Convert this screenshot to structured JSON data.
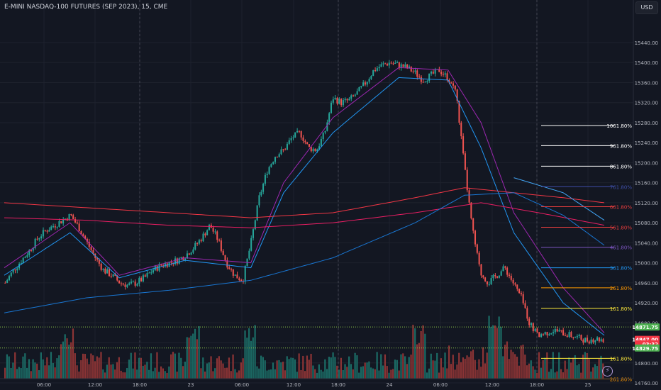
{
  "header": {
    "title": "E-MINI NASDAQ-100 FUTURES (SEP 2023), 15, CME",
    "currency_button": "USD"
  },
  "colors": {
    "background": "#131722",
    "grid": "#1e222d",
    "text": "#b2b5be",
    "up_candle": "#26a69a",
    "down_candle": "#ef5350",
    "volume_up": "#1b6b65",
    "volume_down": "#8c3435"
  },
  "icons": [
    "lightning-icon"
  ],
  "chart_data": {
    "type": "candlestick",
    "symbol": "E-MINI NASDAQ-100 FUTURES (SEP 2023)",
    "interval": "15",
    "exchange": "CME",
    "currency": "USD",
    "ylim": [
      14745,
      15462
    ],
    "y_ticks": [
      {
        "v": 14760,
        "label": "14760.00"
      },
      {
        "v": 14800,
        "label": "14800.00"
      },
      {
        "v": 14840,
        "label": "14840.00"
      },
      {
        "v": 14880,
        "label": "14880.00"
      },
      {
        "v": 14920,
        "label": "14920.00"
      },
      {
        "v": 14960,
        "label": "14960.00"
      },
      {
        "v": 15000,
        "label": "15000.00"
      },
      {
        "v": 15040,
        "label": "15040.00"
      },
      {
        "v": 15080,
        "label": "15080.00"
      },
      {
        "v": 15120,
        "label": "15120.00"
      },
      {
        "v": 15160,
        "label": "15160.00"
      },
      {
        "v": 15200,
        "label": "15200.00"
      },
      {
        "v": 15240,
        "label": "15240.00"
      },
      {
        "v": 15280,
        "label": "15280.00"
      },
      {
        "v": 15320,
        "label": "15320.00"
      },
      {
        "v": 15360,
        "label": "15360.00"
      },
      {
        "v": 15400,
        "label": "15400.00"
      },
      {
        "v": 15440,
        "label": "15440.00"
      }
    ],
    "x_ticks": [
      "06:00",
      "12:00",
      "18:00",
      "23",
      "06:00",
      "12:00",
      "18:00",
      "24",
      "06:00",
      "12:00",
      "18:00",
      "25"
    ],
    "session_separators": [
      3,
      7,
      11
    ],
    "price_anchors": [
      14960,
      14985,
      15005,
      15025,
      15050,
      15065,
      15075,
      15085,
      15095,
      15070,
      15040,
      15010,
      14985,
      14975,
      14960,
      14955,
      14960,
      14970,
      14985,
      14995,
      15000,
      15005,
      15015,
      15030,
      15050,
      15075,
      15045,
      15000,
      14975,
      14965,
      15040,
      15130,
      15185,
      15215,
      15225,
      15250,
      15260,
      15230,
      15225,
      15260,
      15330,
      15320,
      15325,
      15340,
      15360,
      15385,
      15395,
      15400,
      15395,
      15390,
      15380,
      15365,
      15375,
      15385,
      15370,
      15345,
      15200,
      15070,
      14980,
      14960,
      14975,
      14990,
      14960,
      14930,
      14880,
      14855,
      14860,
      14865,
      14860,
      14855,
      14850,
      14845,
      14848,
      14847
    ],
    "moving_averages": [
      {
        "color": "#9c27b0",
        "points": [
          [
            0,
            14990
          ],
          [
            8,
            15080
          ],
          [
            14,
            14975
          ],
          [
            22,
            15010
          ],
          [
            30,
            15000
          ],
          [
            34,
            15160
          ],
          [
            40,
            15290
          ],
          [
            48,
            15390
          ],
          [
            54,
            15385
          ],
          [
            58,
            15280
          ],
          [
            62,
            15100
          ],
          [
            68,
            14950
          ],
          [
            73,
            14860
          ]
        ]
      },
      {
        "color": "#2196f3",
        "points": [
          [
            0,
            14975
          ],
          [
            8,
            15060
          ],
          [
            14,
            14970
          ],
          [
            22,
            15005
          ],
          [
            30,
            14990
          ],
          [
            34,
            15140
          ],
          [
            40,
            15260
          ],
          [
            48,
            15370
          ],
          [
            54,
            15365
          ],
          [
            58,
            15230
          ],
          [
            62,
            15060
          ],
          [
            68,
            14920
          ],
          [
            73,
            14855
          ]
        ]
      },
      {
        "color": "#f23645",
        "points": [
          [
            0,
            15120
          ],
          [
            10,
            15110
          ],
          [
            20,
            15100
          ],
          [
            30,
            15090
          ],
          [
            40,
            15100
          ],
          [
            50,
            15130
          ],
          [
            56,
            15150
          ],
          [
            62,
            15140
          ],
          [
            68,
            15130
          ],
          [
            73,
            15120
          ]
        ]
      },
      {
        "color": "#e91e63",
        "points": [
          [
            0,
            15090
          ],
          [
            10,
            15085
          ],
          [
            20,
            15075
          ],
          [
            30,
            15070
          ],
          [
            40,
            15080
          ],
          [
            50,
            15100
          ],
          [
            58,
            15120
          ],
          [
            65,
            15100
          ],
          [
            73,
            15075
          ]
        ]
      },
      {
        "color": "#1976d2",
        "points": [
          [
            0,
            14900
          ],
          [
            10,
            14930
          ],
          [
            20,
            14945
          ],
          [
            30,
            14965
          ],
          [
            40,
            15010
          ],
          [
            50,
            15080
          ],
          [
            56,
            15135
          ],
          [
            62,
            15140
          ],
          [
            68,
            15095
          ],
          [
            73,
            15035
          ]
        ]
      },
      {
        "color": "#42a5f5",
        "points": [
          [
            62,
            15170
          ],
          [
            68,
            15140
          ],
          [
            73,
            15085
          ]
        ]
      }
    ],
    "fib_levels": [
      {
        "label": "1061.80%",
        "value": 15274,
        "color": "#ffffff",
        "text_color": "#ffffff"
      },
      {
        "label": "961.80%",
        "value": 15234,
        "color": "#ffffff",
        "text_color": "#ffffff"
      },
      {
        "label": "861.80%",
        "value": 15193,
        "color": "#ffffff",
        "text_color": "#ffffff"
      },
      {
        "label": "761.80%",
        "value": 15152,
        "color": "#3f4fa8",
        "text_color": "#3f4fa8"
      },
      {
        "label": "661.80%",
        "value": 15112,
        "color": "#e83e3e",
        "text_color": "#e83e3e"
      },
      {
        "label": "561.80%",
        "value": 15071,
        "color": "#e83e3e",
        "text_color": "#e83e3e"
      },
      {
        "label": "461.80%",
        "value": 15031,
        "color": "#7e57c2",
        "text_color": "#7e57c2"
      },
      {
        "label": "361.80%",
        "value": 14990,
        "color": "#2196f3",
        "text_color": "#2196f3"
      },
      {
        "label": "261.80%",
        "value": 14950,
        "color": "#ff9800",
        "text_color": "#ff9800"
      },
      {
        "label": "161.80%",
        "value": 14909,
        "color": "#ffeb3b",
        "text_color": "#ffeb3b"
      },
      {
        "label": "161.80%",
        "value": 14809,
        "color": "#ffeb3b",
        "text_color": "#ffeb3b"
      },
      {
        "label": "261.80%",
        "value": 14768,
        "color": "#ff9800",
        "text_color": "#ff9800"
      }
    ],
    "price_labels": [
      {
        "text": "14871.75",
        "value": 14871.75,
        "bg": "#4caf50",
        "fg": "#ffffff"
      },
      {
        "text": "14847.00",
        "value": 14847,
        "bg": "#f23645",
        "fg": "#ffffff"
      },
      {
        "text": "03:32",
        "value": 14838,
        "bg": "#f23645",
        "fg": "#ffffff"
      },
      {
        "text": "14829.75",
        "value": 14829.75,
        "bg": "#4caf50",
        "fg": "#ffffff"
      }
    ],
    "dotted_levels": [
      14871.75,
      14829.75
    ]
  }
}
